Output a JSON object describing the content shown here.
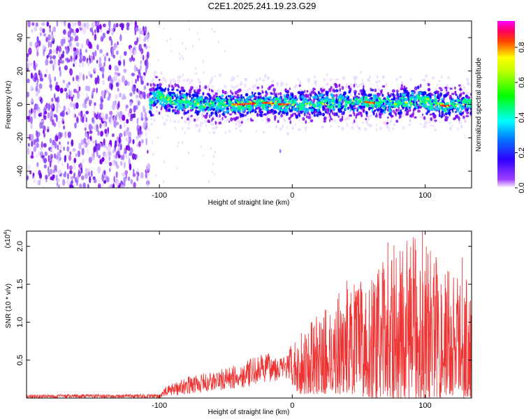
{
  "figure": {
    "title": "C2E1.2025.241.19.23.G29"
  },
  "chart_data": [
    {
      "type": "heatmap",
      "title": "C2E1.2025.241.19.23.G29",
      "xlabel": "Height of straight line (km)",
      "ylabel": "Frequency (Hz)",
      "xlim": [
        -200,
        135
      ],
      "ylim": [
        -50,
        50
      ],
      "xticks": [
        -100,
        0,
        100
      ],
      "xtick_labels": [
        "-100",
        "0",
        "100"
      ],
      "yticks": [
        -40,
        -20,
        0,
        20,
        40
      ],
      "ytick_labels": [
        "-40",
        "-20",
        "0",
        "20",
        "40"
      ],
      "colorbar": {
        "label": "Normalized spectral amplitude",
        "range": [
          0,
          0.95
        ],
        "ticks": [
          0.0,
          0.2,
          0.4,
          0.6,
          0.8
        ],
        "tick_labels": [
          "0.0",
          "0.2",
          "0.4",
          "0.6",
          "0.8"
        ],
        "colormap": [
          "#ffffff",
          "#7f00ff",
          "#0000ff",
          "#00ffff",
          "#00ff00",
          "#ffff00",
          "#ff7f00",
          "#ff0000",
          "#ff00ff"
        ]
      },
      "signal": {
        "description_values": "noise region x -200 to -108 spanning full frequency band; coherent band near 0 Hz from x -108 to 135",
        "noise_region_x": [
          -200,
          -108
        ],
        "band_region_x": [
          -108,
          135
        ],
        "band_center_hz": [
          {
            "x": -105,
            "y": 6
          },
          {
            "x": -90,
            "y": 2
          },
          {
            "x": -60,
            "y": 0
          },
          {
            "x": -40,
            "y": 0
          },
          {
            "x": -20,
            "y": 1
          },
          {
            "x": -8,
            "y": 0
          },
          {
            "x": 10,
            "y": 0
          },
          {
            "x": 30,
            "y": 1
          },
          {
            "x": 50,
            "y": 2
          },
          {
            "x": 70,
            "y": 0
          },
          {
            "x": 95,
            "y": 3
          },
          {
            "x": 115,
            "y": -1
          },
          {
            "x": 135,
            "y": 1
          }
        ],
        "outlier_point": {
          "x": -9,
          "y": -28
        }
      },
      "colors": {
        "noise": "#7a00f0",
        "band_core": "#ff0000",
        "band_edge": "#0000ff"
      }
    },
    {
      "type": "line",
      "xlabel": "Height of straight line (km)",
      "ylabel": "SNR (10 * v/v)",
      "y_scale_note": "(x10",
      "y_scale_exponent": "4",
      "xlim": [
        -200,
        135
      ],
      "ylim": [
        0.0,
        2.2
      ],
      "xticks": [
        -100,
        0,
        100
      ],
      "xtick_labels": [
        "-100",
        "0",
        "100"
      ],
      "yticks": [
        0.5,
        1.0,
        1.5,
        2.0
      ],
      "ytick_labels": [
        "0.5",
        "1.0",
        "1.5",
        "2.0"
      ],
      "series": [
        {
          "name": "SNR",
          "color": "#ee3333",
          "envelope": [
            {
              "x": -200,
              "low": 0.0,
              "high": 0.05
            },
            {
              "x": -100,
              "low": 0.0,
              "high": 0.05
            },
            {
              "x": -95,
              "low": 0.02,
              "high": 0.15
            },
            {
              "x": -80,
              "low": 0.05,
              "high": 0.28
            },
            {
              "x": -60,
              "low": 0.08,
              "high": 0.35
            },
            {
              "x": -40,
              "low": 0.12,
              "high": 0.45
            },
            {
              "x": -20,
              "low": 0.2,
              "high": 0.6
            },
            {
              "x": -5,
              "low": 0.25,
              "high": 0.55
            },
            {
              "x": 5,
              "low": 0.05,
              "high": 0.9
            },
            {
              "x": 20,
              "low": 0.05,
              "high": 1.1
            },
            {
              "x": 40,
              "low": 0.05,
              "high": 1.5
            },
            {
              "x": 60,
              "low": 0.0,
              "high": 1.6
            },
            {
              "x": 75,
              "low": 0.0,
              "high": 2.0
            },
            {
              "x": 95,
              "low": 0.0,
              "high": 2.2
            },
            {
              "x": 115,
              "low": 0.0,
              "high": 1.8
            },
            {
              "x": 135,
              "low": 0.0,
              "high": 1.6
            }
          ],
          "peaks": [
            {
              "x": 72,
              "y": 2.05
            },
            {
              "x": 98,
              "y": 2.2
            },
            {
              "x": 93,
              "y": 1.95
            },
            {
              "x": 128,
              "y": 1.85
            },
            {
              "x": 41,
              "y": 1.55
            },
            {
              "x": 112,
              "y": 1.5
            }
          ]
        }
      ]
    }
  ]
}
